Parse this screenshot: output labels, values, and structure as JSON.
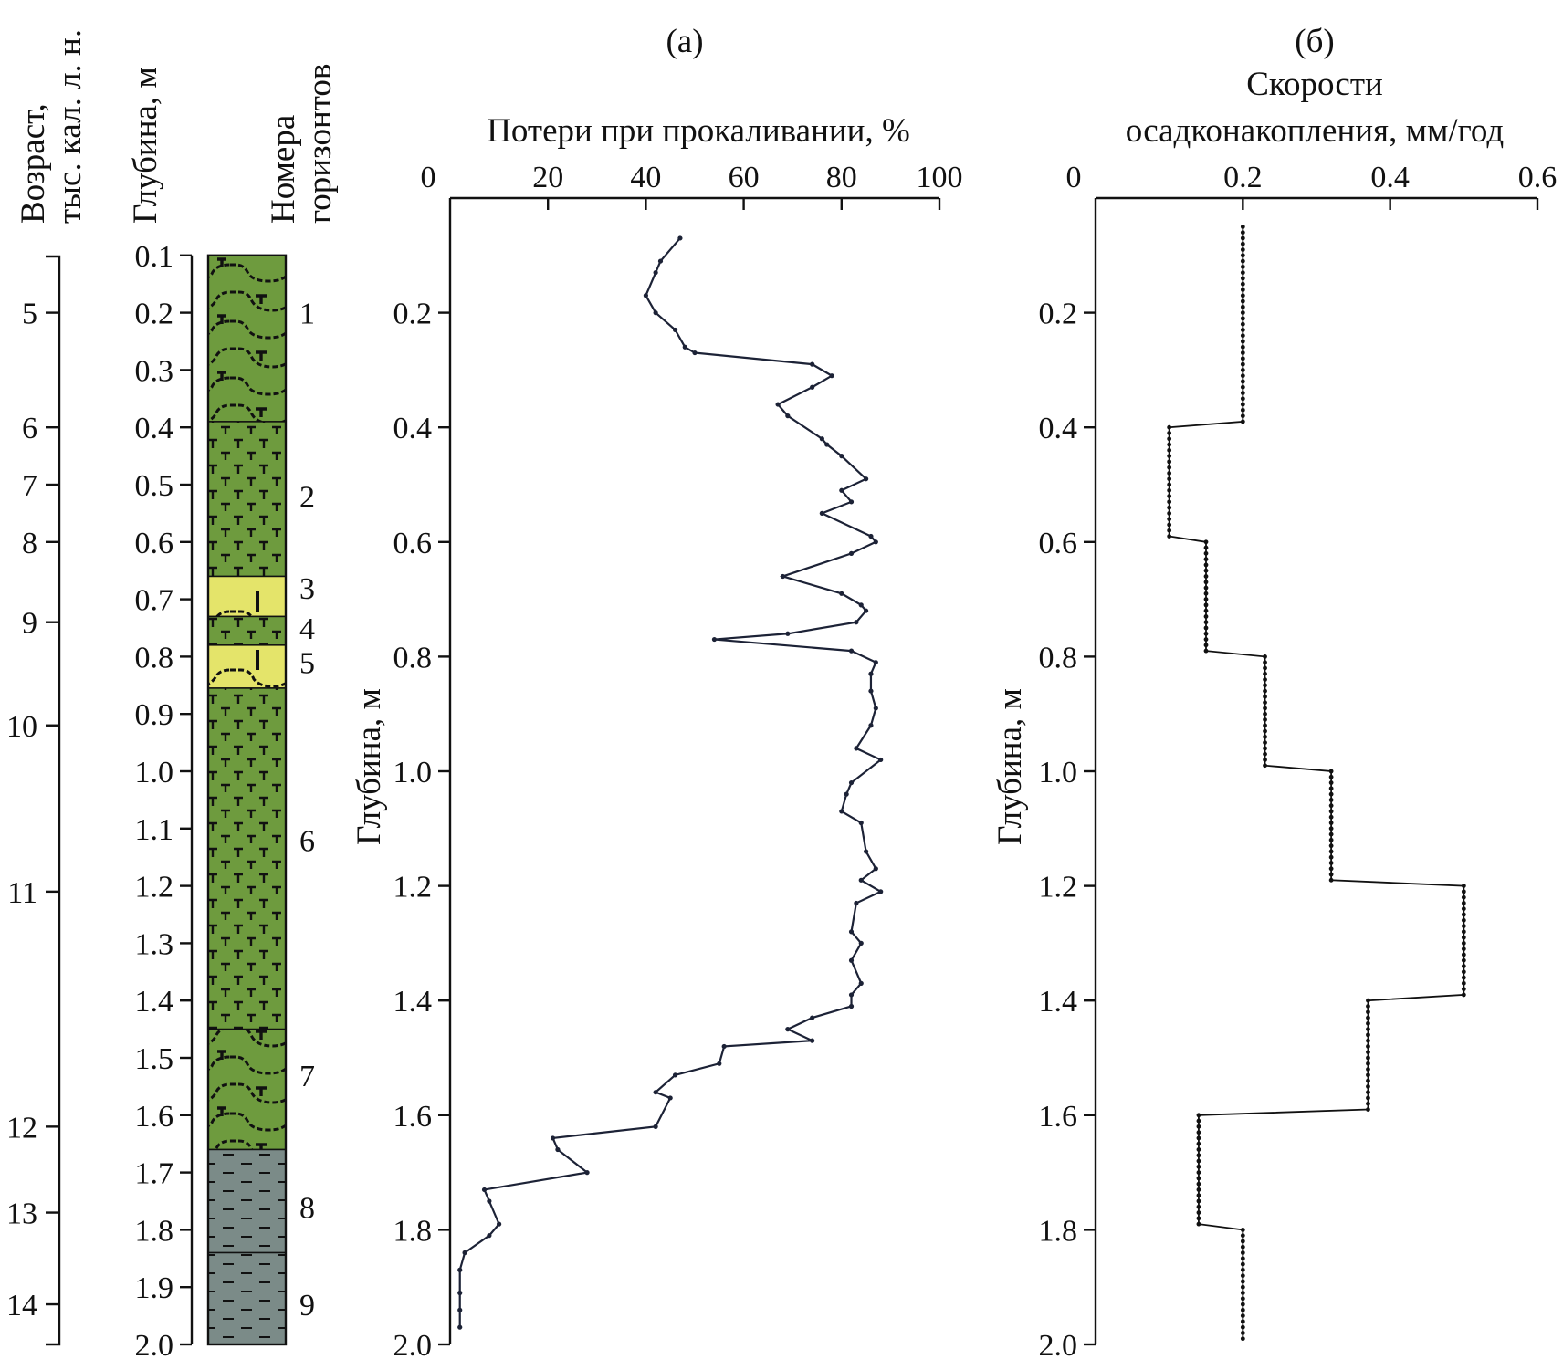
{
  "chart_data": [
    {
      "type": "table",
      "column_headers": {
        "age": [
          "Возраст,",
          "тыс. кал. л. н."
        ],
        "depth": [
          "Глубина, м"
        ],
        "horizons": [
          "Номера",
          "горизонтов"
        ]
      },
      "age_ticks": [
        {
          "age": "5",
          "depth": 0.2
        },
        {
          "age": "6",
          "depth": 0.4
        },
        {
          "age": "7",
          "depth": 0.5
        },
        {
          "age": "8",
          "depth": 0.6
        },
        {
          "age": "9",
          "depth": 0.74
        },
        {
          "age": "10",
          "depth": 0.92
        },
        {
          "age": "11",
          "depth": 1.21
        },
        {
          "age": "12",
          "depth": 1.62
        },
        {
          "age": "13",
          "depth": 1.77
        },
        {
          "age": "14",
          "depth": 1.93
        }
      ],
      "depth_ticks": [
        "0.1",
        "0.2",
        "0.3",
        "0.4",
        "0.5",
        "0.6",
        "0.7",
        "0.8",
        "0.9",
        "1.0",
        "1.1",
        "1.2",
        "1.3",
        "1.4",
        "1.5",
        "1.6",
        "1.7",
        "1.8",
        "1.9",
        "2.0"
      ],
      "horizons": [
        {
          "label": "1",
          "top": 0.1,
          "bottom": 0.39,
          "lithology": "peat",
          "color": "#6e9b3e"
        },
        {
          "label": "2",
          "top": 0.39,
          "bottom": 0.66,
          "lithology": "sedge-peat",
          "color": "#6e9b3e"
        },
        {
          "label": "3",
          "top": 0.66,
          "bottom": 0.73,
          "lithology": "sapropel",
          "color": "#e4e46a"
        },
        {
          "label": "4",
          "top": 0.73,
          "bottom": 0.78,
          "lithology": "sedge-peat",
          "color": "#6e9b3e"
        },
        {
          "label": "5",
          "top": 0.78,
          "bottom": 0.855,
          "lithology": "sapropel",
          "color": "#e4e46a"
        },
        {
          "label": "6",
          "top": 0.855,
          "bottom": 1.45,
          "lithology": "sedge-peat",
          "color": "#6e9b3e"
        },
        {
          "label": "7",
          "top": 1.45,
          "bottom": 1.66,
          "lithology": "peat",
          "color": "#6e9b3e"
        },
        {
          "label": "8",
          "top": 1.66,
          "bottom": 1.84,
          "lithology": "clay",
          "color": "#7b8b88"
        },
        {
          "label": "9",
          "top": 1.84,
          "bottom": 2.0,
          "lithology": "clay",
          "color": "#7b8b88"
        }
      ]
    },
    {
      "type": "line",
      "panel_label": "(а)",
      "title": "Потери при прокаливании, %",
      "ylabel": "Глубина, м",
      "xlim": [
        0,
        100
      ],
      "ylim": [
        2.0,
        0.0
      ],
      "x_ticks": [
        "0",
        "20",
        "40",
        "60",
        "80",
        "100"
      ],
      "y_ticks": [
        "0.2",
        "0.4",
        "0.6",
        "0.8",
        "1.0",
        "1.2",
        "1.4",
        "1.6",
        "1.8",
        "2.0"
      ],
      "line_color": "#1c2236",
      "series": [
        {
          "x": [
            47,
            43,
            42,
            40,
            42,
            46,
            48,
            50,
            74,
            78,
            74,
            67,
            69,
            76,
            77,
            80,
            85,
            80,
            82,
            76,
            86,
            87,
            82,
            68,
            80,
            84,
            85,
            83,
            69,
            54,
            82,
            87,
            86,
            86,
            87,
            86,
            83,
            88,
            82,
            81,
            80,
            84,
            85,
            87,
            84,
            88,
            83,
            82,
            84,
            82,
            84,
            82,
            82,
            74,
            69,
            74,
            56,
            55,
            46,
            42,
            45,
            42,
            21,
            22,
            28,
            7,
            8,
            10,
            8,
            3,
            2,
            2,
            2,
            2
          ],
          "y": [
            0.07,
            0.11,
            0.13,
            0.17,
            0.2,
            0.23,
            0.26,
            0.27,
            0.29,
            0.31,
            0.33,
            0.36,
            0.38,
            0.42,
            0.43,
            0.45,
            0.49,
            0.51,
            0.53,
            0.55,
            0.59,
            0.6,
            0.62,
            0.66,
            0.69,
            0.71,
            0.72,
            0.74,
            0.76,
            0.77,
            0.79,
            0.81,
            0.83,
            0.86,
            0.89,
            0.92,
            0.96,
            0.98,
            1.02,
            1.04,
            1.07,
            1.09,
            1.14,
            1.17,
            1.19,
            1.21,
            1.23,
            1.28,
            1.3,
            1.33,
            1.37,
            1.39,
            1.41,
            1.43,
            1.45,
            1.47,
            1.48,
            1.51,
            1.53,
            1.56,
            1.57,
            1.62,
            1.64,
            1.66,
            1.7,
            1.73,
            1.75,
            1.79,
            1.81,
            1.84,
            1.87,
            1.91,
            1.94,
            1.97
          ]
        }
      ]
    },
    {
      "type": "line",
      "panel_label": "(б)",
      "title": [
        "Скорости",
        "осадконакопления, мм/год"
      ],
      "ylabel": "Глубина, м",
      "xlim": [
        0,
        0.6
      ],
      "ylim": [
        2.0,
        0.0
      ],
      "x_ticks": [
        "0",
        "0.2",
        "0.4",
        "0.6"
      ],
      "y_ticks": [
        "0.2",
        "0.4",
        "0.6",
        "0.8",
        "1.0",
        "1.2",
        "1.4",
        "1.6",
        "1.8",
        "2.0"
      ],
      "line_color": "#111111",
      "series": [
        {
          "steps": [
            {
              "rate": 0.2,
              "top": 0.05,
              "bottom": 0.39
            },
            {
              "rate": 0.1,
              "top": 0.4,
              "bottom": 0.59
            },
            {
              "rate": 0.15,
              "top": 0.6,
              "bottom": 0.79
            },
            {
              "rate": 0.23,
              "top": 0.8,
              "bottom": 0.99
            },
            {
              "rate": 0.32,
              "top": 1.0,
              "bottom": 1.19
            },
            {
              "rate": 0.5,
              "top": 1.2,
              "bottom": 1.39
            },
            {
              "rate": 0.37,
              "top": 1.4,
              "bottom": 1.59
            },
            {
              "rate": 0.14,
              "top": 1.6,
              "bottom": 1.79
            },
            {
              "rate": 0.2,
              "top": 1.8,
              "bottom": 1.99
            }
          ]
        }
      ]
    }
  ]
}
